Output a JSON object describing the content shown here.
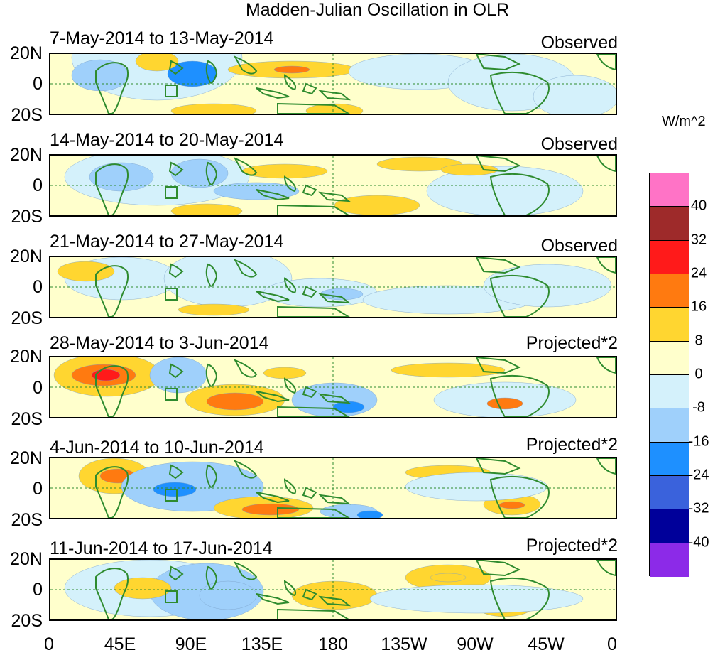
{
  "title": "Madden-Julian Oscillation in OLR",
  "units": "W/m^2",
  "lat_labels": [
    "20N",
    "0",
    "20S"
  ],
  "lon_labels": [
    "0",
    "45E",
    "90E",
    "135E",
    "180",
    "135W",
    "90W",
    "45W",
    "0"
  ],
  "panels": [
    {
      "date_range": "7-May-2014 to 13-May-2014",
      "type": "Observed"
    },
    {
      "date_range": "14-May-2014 to 20-May-2014",
      "type": "Observed"
    },
    {
      "date_range": "21-May-2014 to 27-May-2014",
      "type": "Observed"
    },
    {
      "date_range": "28-May-2014 to 3-Jun-2014",
      "type": "Projected*2"
    },
    {
      "date_range": "4-Jun-2014 to 10-Jun-2014",
      "type": "Projected*2"
    },
    {
      "date_range": "11-Jun-2014 to 17-Jun-2014",
      "type": "Projected*2"
    }
  ],
  "colorbar": {
    "labels": [
      "40",
      "32",
      "24",
      "16",
      "8",
      "0",
      "-8",
      "-16",
      "-24",
      "-32",
      "-40"
    ],
    "colors": [
      "#ff73c6",
      "#9e2a2a",
      "#ff1a1a",
      "#ff7a10",
      "#ffd630",
      "#ffffcc",
      "#d4f1fb",
      "#9fd0fb",
      "#1e90ff",
      "#3a62dc",
      "#00009a",
      "#8c2ae8"
    ]
  },
  "colors": {
    "continent_outline": "#2e8b2e",
    "equator_line": "#2e8b2e",
    "dateline": "#2e8b2e"
  }
}
